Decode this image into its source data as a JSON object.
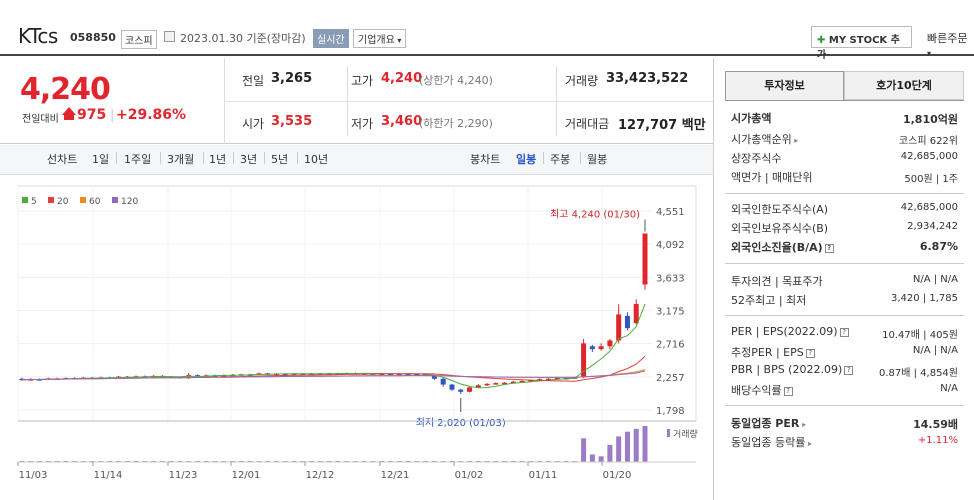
{
  "header": {
    "stock_name": "KTcs",
    "stock_code": "058850",
    "market": "코스피",
    "base_date": "2023.01.30 기준(장마감)",
    "realtime": "실시간",
    "company_overview": "기업개요",
    "my_stock": "MY STOCK 추가",
    "quick_order": "빠른주문"
  },
  "price": {
    "current": "4,240",
    "change_label": "전일대비",
    "change_amount": "975",
    "change_percent": "+29.86%",
    "prev_close_label": "전일",
    "prev_close": "3,265",
    "high_label": "고가",
    "high": "4,240",
    "upper_limit": "(상한가 4,240)",
    "volume_label": "거래량",
    "volume": "33,423,522",
    "open_label": "시가",
    "open": "3,535",
    "low_label": "저가",
    "low": "3,460",
    "lower_limit": "(하한가 2,290)",
    "amount_label": "거래대금",
    "amount": "127,707 백만"
  },
  "period_bar": {
    "line_chart": "선차트",
    "periods": [
      "1일",
      "1주일",
      "3개월",
      "1년",
      "3년",
      "5년",
      "10년"
    ],
    "candle_chart": "봉차트",
    "candles": [
      "일봉",
      "주봉",
      "월봉"
    ]
  },
  "chart_data": {
    "type": "candlestick",
    "legend": [
      {
        "name": "5",
        "color": "#4cae3a"
      },
      {
        "name": "20",
        "color": "#e04040"
      },
      {
        "name": "60",
        "color": "#f08c1e"
      },
      {
        "name": "120",
        "color": "#8e6bc0"
      }
    ],
    "y_ticks": [
      "4,551",
      "4,092",
      "3,633",
      "3,175",
      "2,716",
      "2,257",
      "1,798"
    ],
    "ylim": [
      1798,
      4551
    ],
    "x_ticks": [
      "11/03",
      "11/14",
      "11/23",
      "12/01",
      "12/12",
      "12/21",
      "01/02",
      "01/11",
      "01/20"
    ],
    "high_annotation": "최고 4,240 (01/30)",
    "low_annotation": "최저 2,020 (01/03)",
    "volume_label": "거래량",
    "candles": [
      {
        "o": 2230,
        "c": 2215,
        "h": 2245,
        "l": 2205
      },
      {
        "o": 2215,
        "c": 2225,
        "h": 2240,
        "l": 2205
      },
      {
        "o": 2225,
        "c": 2220,
        "h": 2235,
        "l": 2210
      },
      {
        "o": 2220,
        "c": 2235,
        "h": 2245,
        "l": 2212
      },
      {
        "o": 2235,
        "c": 2228,
        "h": 2245,
        "l": 2220
      },
      {
        "o": 2228,
        "c": 2240,
        "h": 2250,
        "l": 2220
      },
      {
        "o": 2240,
        "c": 2232,
        "h": 2250,
        "l": 2225
      },
      {
        "o": 2232,
        "c": 2245,
        "h": 2255,
        "l": 2225
      },
      {
        "o": 2245,
        "c": 2238,
        "h": 2255,
        "l": 2230
      },
      {
        "o": 2238,
        "c": 2250,
        "h": 2260,
        "l": 2232
      },
      {
        "o": 2250,
        "c": 2245,
        "h": 2258,
        "l": 2238
      },
      {
        "o": 2245,
        "c": 2260,
        "h": 2270,
        "l": 2240
      },
      {
        "o": 2260,
        "c": 2255,
        "h": 2268,
        "l": 2248
      },
      {
        "o": 2255,
        "c": 2265,
        "h": 2275,
        "l": 2250
      },
      {
        "o": 2265,
        "c": 2258,
        "h": 2275,
        "l": 2250
      },
      {
        "o": 2258,
        "c": 2270,
        "h": 2280,
        "l": 2252
      },
      {
        "o": 2270,
        "c": 2262,
        "h": 2280,
        "l": 2255
      },
      {
        "o": 2262,
        "c": 2248,
        "h": 2270,
        "l": 2240
      },
      {
        "o": 2248,
        "c": 2255,
        "h": 2262,
        "l": 2242
      },
      {
        "o": 2240,
        "c": 2280,
        "h": 2310,
        "l": 2225
      },
      {
        "o": 2280,
        "c": 2270,
        "h": 2290,
        "l": 2262
      },
      {
        "o": 2270,
        "c": 2278,
        "h": 2288,
        "l": 2262
      },
      {
        "o": 2278,
        "c": 2272,
        "h": 2286,
        "l": 2265
      },
      {
        "o": 2272,
        "c": 2282,
        "h": 2290,
        "l": 2266
      },
      {
        "o": 2282,
        "c": 2285,
        "h": 2295,
        "l": 2275
      },
      {
        "o": 2285,
        "c": 2292,
        "h": 2300,
        "l": 2280
      },
      {
        "o": 2292,
        "c": 2290,
        "h": 2300,
        "l": 2282
      },
      {
        "o": 2295,
        "c": 2305,
        "h": 2315,
        "l": 2288
      },
      {
        "o": 2305,
        "c": 2295,
        "h": 2312,
        "l": 2288
      },
      {
        "o": 2295,
        "c": 2300,
        "h": 2310,
        "l": 2290
      },
      {
        "o": 2300,
        "c": 2296,
        "h": 2308,
        "l": 2290
      },
      {
        "o": 2296,
        "c": 2302,
        "h": 2310,
        "l": 2290
      },
      {
        "o": 2302,
        "c": 2298,
        "h": 2310,
        "l": 2292
      },
      {
        "o": 2298,
        "c": 2304,
        "h": 2312,
        "l": 2292
      },
      {
        "o": 2304,
        "c": 2300,
        "h": 2312,
        "l": 2294
      },
      {
        "o": 2300,
        "c": 2306,
        "h": 2314,
        "l": 2294
      },
      {
        "o": 2306,
        "c": 2302,
        "h": 2314,
        "l": 2296
      },
      {
        "o": 2302,
        "c": 2308,
        "h": 2316,
        "l": 2296
      },
      {
        "o": 2308,
        "c": 2300,
        "h": 2316,
        "l": 2294
      },
      {
        "o": 2300,
        "c": 2305,
        "h": 2312,
        "l": 2294
      },
      {
        "o": 2305,
        "c": 2298,
        "h": 2312,
        "l": 2292
      },
      {
        "o": 2298,
        "c": 2303,
        "h": 2310,
        "l": 2292
      },
      {
        "o": 2303,
        "c": 2297,
        "h": 2310,
        "l": 2290
      },
      {
        "o": 2297,
        "c": 2301,
        "h": 2308,
        "l": 2290
      },
      {
        "o": 2301,
        "c": 2295,
        "h": 2308,
        "l": 2288
      },
      {
        "o": 2295,
        "c": 2290,
        "h": 2302,
        "l": 2282
      },
      {
        "o": 2290,
        "c": 2280,
        "h": 2295,
        "l": 2270
      },
      {
        "o": 2280,
        "c": 2230,
        "h": 2285,
        "l": 2215
      },
      {
        "o": 2230,
        "c": 2150,
        "h": 2240,
        "l": 2120
      },
      {
        "o": 2150,
        "c": 2080,
        "h": 2160,
        "l": 2060
      },
      {
        "o": 2080,
        "c": 2050,
        "h": 2090,
        "l": 2020
      },
      {
        "o": 2050,
        "c": 2110,
        "h": 2125,
        "l": 2040
      },
      {
        "o": 2110,
        "c": 2140,
        "h": 2155,
        "l": 2100
      },
      {
        "o": 2140,
        "c": 2160,
        "h": 2170,
        "l": 2130
      },
      {
        "o": 2160,
        "c": 2170,
        "h": 2180,
        "l": 2150
      },
      {
        "o": 2170,
        "c": 2175,
        "h": 2185,
        "l": 2160
      },
      {
        "o": 2175,
        "c": 2190,
        "h": 2200,
        "l": 2165
      },
      {
        "o": 2190,
        "c": 2200,
        "h": 2210,
        "l": 2180
      },
      {
        "o": 2200,
        "c": 2210,
        "h": 2220,
        "l": 2190
      },
      {
        "o": 2210,
        "c": 2225,
        "h": 2235,
        "l": 2200
      },
      {
        "o": 2225,
        "c": 2230,
        "h": 2240,
        "l": 2215
      },
      {
        "o": 2230,
        "c": 2240,
        "h": 2250,
        "l": 2220
      },
      {
        "o": 2240,
        "c": 2235,
        "h": 2250,
        "l": 2225
      },
      {
        "o": 2235,
        "c": 2250,
        "h": 2260,
        "l": 2228
      },
      {
        "o": 2250,
        "c": 2720,
        "h": 2780,
        "l": 2240
      },
      {
        "o": 2680,
        "c": 2640,
        "h": 2700,
        "l": 2600
      },
      {
        "o": 2640,
        "c": 2680,
        "h": 2720,
        "l": 2620
      },
      {
        "o": 2680,
        "c": 2760,
        "h": 2780,
        "l": 2640
      },
      {
        "o": 2760,
        "c": 3120,
        "h": 3260,
        "l": 2720
      },
      {
        "o": 3100,
        "c": 2930,
        "h": 3150,
        "l": 2900
      },
      {
        "o": 3000,
        "c": 3265,
        "h": 3330,
        "l": 2980
      },
      {
        "o": 3535,
        "c": 4240,
        "h": 4240,
        "l": 3460
      }
    ],
    "volumes": [
      1,
      1,
      1,
      1,
      1,
      1,
      1,
      1,
      1,
      1,
      1,
      1,
      1,
      1,
      1,
      1,
      1,
      1,
      1,
      1,
      1,
      1,
      1,
      1,
      1,
      1,
      1,
      1,
      1,
      1,
      1,
      1,
      1,
      1,
      1,
      1,
      1,
      1,
      1,
      1,
      1,
      1,
      1,
      1,
      1,
      1,
      1,
      1,
      1,
      1,
      1,
      1,
      1,
      1,
      1,
      1,
      1,
      1,
      1,
      1,
      1,
      1,
      1,
      1,
      25,
      8,
      6,
      18,
      27,
      32,
      35,
      38
    ]
  },
  "right": {
    "tab_invest": "투자정보",
    "tab_hoga": "호가10단계",
    "rows": [
      {
        "label": "시가총액",
        "value": "1,810억원",
        "bold": true
      },
      {
        "label": "시가총액순위",
        "value": "코스피 622위",
        "arrow": true
      },
      {
        "label": "상장주식수",
        "value": "42,685,000"
      },
      {
        "label": "액면가 | 매매단위",
        "value": "500원 | 1주"
      },
      {
        "label": "외국인한도주식수(A)",
        "value": "42,685,000"
      },
      {
        "label": "외국인보유주식수(B)",
        "value": "2,934,242"
      },
      {
        "label": "외국인소진율(B/A)",
        "value": "6.87%",
        "bold": true,
        "q": true
      },
      {
        "label": "투자의견 | 목표주가",
        "value": "N/A | N/A"
      },
      {
        "label": "52주최고 | 최저",
        "value": "3,420 | 1,785"
      },
      {
        "label": "PER | EPS(2022.09)",
        "value": "10.47배 | 405원",
        "q": true
      },
      {
        "label": "추정PER | EPS",
        "value": "N/A | N/A",
        "q": true
      },
      {
        "label": "PBR | BPS (2022.09)",
        "value": "0.87배 | 4,854원",
        "q": true
      },
      {
        "label": "배당수익률",
        "value": "N/A",
        "q": true
      },
      {
        "label": "동일업종 PER",
        "value": "14.59배",
        "bold": true,
        "arrow": true
      },
      {
        "label": "동일업종 등락률",
        "value": "+1.11%",
        "red": true,
        "arrow": true
      }
    ]
  }
}
